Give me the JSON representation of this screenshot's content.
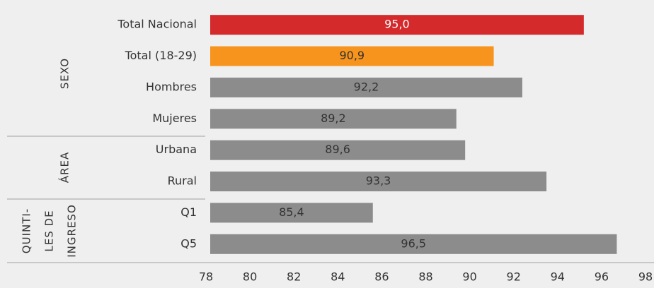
{
  "chart_data": {
    "type": "bar",
    "orientation": "horizontal",
    "categories": [
      "Total Nacional",
      "Total (18-29)",
      "Hombres",
      "Mujeres",
      "Urbana",
      "Rural",
      "Q1",
      "Q5"
    ],
    "values": [
      95.0,
      90.9,
      92.2,
      89.2,
      89.6,
      93.3,
      85.4,
      96.5
    ],
    "value_labels": [
      "95,0",
      "90,9",
      "92,2",
      "89,2",
      "89,6",
      "93,3",
      "85,4",
      "96,5"
    ],
    "colors": [
      "#d42a2c",
      "#f7941d",
      "#8c8c8c",
      "#8c8c8c",
      "#8c8c8c",
      "#8c8c8c",
      "#8c8c8c",
      "#8c8c8c"
    ],
    "groups": [
      [
        "SEXO"
      ],
      [
        "ÁREA"
      ],
      [
        "QUINTI-",
        "LES DE",
        "INGRESO"
      ]
    ],
    "xlim": [
      78,
      98
    ],
    "xticks": [
      78,
      80,
      82,
      84,
      86,
      88,
      90,
      92,
      94,
      96,
      98
    ],
    "grid": false
  }
}
